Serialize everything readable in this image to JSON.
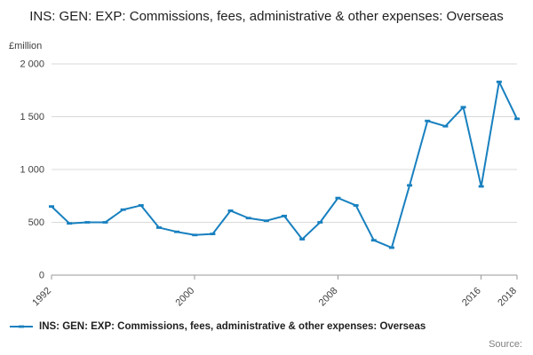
{
  "title": "INS: GEN: EXP: Commissions, fees, administrative & other expenses: Overseas",
  "y_unit": "£million",
  "source_label": "Source:",
  "legend": {
    "label": "INS: GEN: EXP: Commissions, fees, administrative & other expenses: Overseas"
  },
  "colors": {
    "accent": "#1880bf",
    "grid": "#d9d9d9",
    "axis": "#999999",
    "tick_text": "#404040"
  },
  "chart_data": {
    "type": "line",
    "x": [
      1992,
      1993,
      1994,
      1995,
      1996,
      1997,
      1998,
      1999,
      2000,
      2001,
      2002,
      2003,
      2004,
      2005,
      2006,
      2007,
      2008,
      2009,
      2010,
      2011,
      2012,
      2013,
      2014,
      2015,
      2016,
      2017,
      2018
    ],
    "series": [
      {
        "name": "INS: GEN: EXP: Commissions, fees, administrative & other expenses: Overseas",
        "values": [
          650,
          490,
          500,
          500,
          620,
          660,
          450,
          410,
          380,
          390,
          610,
          540,
          515,
          560,
          340,
          500,
          730,
          660,
          330,
          260,
          850,
          1460,
          1410,
          1590,
          840,
          1830,
          1480
        ]
      }
    ],
    "title": "INS: GEN: EXP: Commissions, fees, administrative & other expenses: Overseas",
    "xlabel": "",
    "ylabel": "£million",
    "ylim": [
      0,
      2000
    ],
    "yticks": [
      0,
      500,
      1000,
      1500,
      2000
    ],
    "ytick_labels": [
      "0",
      "500",
      "1 000",
      "1 500",
      "2 000"
    ],
    "xticks": [
      1992,
      2000,
      2008,
      2016,
      2018
    ],
    "grid": true,
    "legend_position": "bottom"
  }
}
